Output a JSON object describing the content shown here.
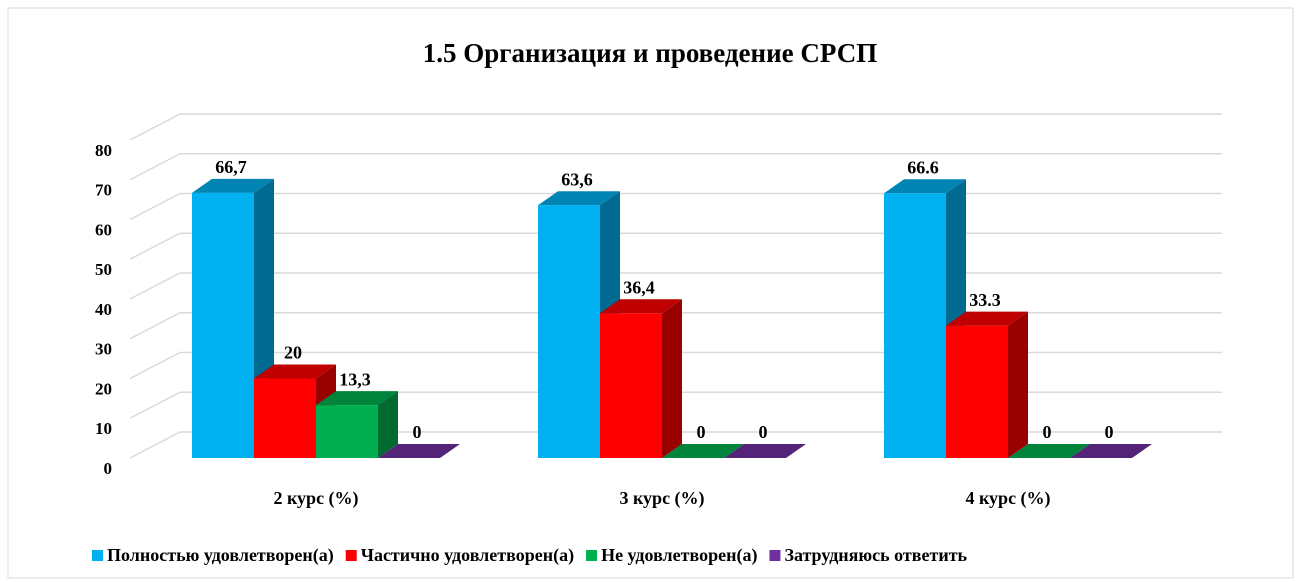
{
  "chart_data": {
    "type": "bar3d",
    "title": "1.5 Организация  и проведение СРСП",
    "categories": [
      "2 курс (%)",
      "3 курс (%)",
      "4 курс (%)"
    ],
    "series": [
      {
        "name": "Полностью удовлетворен(а)",
        "color": "#00b0f0",
        "values": [
          66.7,
          63.6,
          66.6
        ],
        "value_labels": [
          "66,7",
          "63,6",
          "66.6"
        ]
      },
      {
        "name": "Частично удовлетворен(а)",
        "color": "#ff0000",
        "values": [
          20,
          36.4,
          33.3
        ],
        "value_labels": [
          "20",
          "36,4",
          "33.3"
        ]
      },
      {
        "name": "Не удовлетворен(а)",
        "color": "#00b050",
        "values": [
          13.3,
          0,
          0
        ],
        "value_labels": [
          "13,3",
          "0",
          "0"
        ]
      },
      {
        "name": "Затрудняюсь ответить",
        "color": "#7030a0",
        "values": [
          0,
          0,
          0
        ],
        "value_labels": [
          "0",
          "0",
          "0"
        ]
      }
    ],
    "ylim": [
      0,
      80
    ],
    "yticks": [
      0,
      10,
      20,
      30,
      40,
      50,
      60,
      70,
      80
    ],
    "grid": true,
    "legend": "bottom"
  }
}
